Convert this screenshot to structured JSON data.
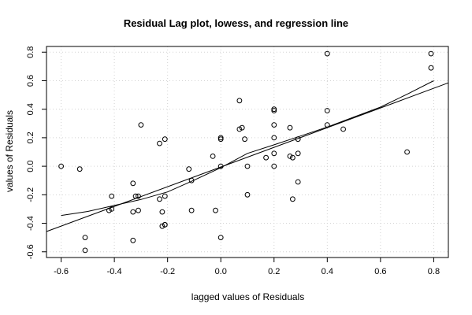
{
  "chart_data": {
    "type": "scatter",
    "title": "Residual Lag plot, lowess, and regression line",
    "xlabel": "lagged values of Residuals",
    "ylabel": "values of Residuals",
    "xlim": [
      -0.655,
      0.855
    ],
    "ylim": [
      -0.64,
      0.84
    ],
    "x_ticks": [
      "-0.6",
      "-0.4",
      "-0.2",
      "0.0",
      "0.2",
      "0.4",
      "0.6",
      "0.8"
    ],
    "y_ticks": [
      "-0.6",
      "-0.4",
      "-0.2",
      "0.0",
      "0.2",
      "0.4",
      "0.6",
      "0.8"
    ],
    "grid": true,
    "points": [
      {
        "x": -0.6,
        "y": 0.0
      },
      {
        "x": -0.53,
        "y": -0.02
      },
      {
        "x": -0.51,
        "y": -0.5
      },
      {
        "x": -0.51,
        "y": -0.59
      },
      {
        "x": -0.42,
        "y": -0.31
      },
      {
        "x": -0.41,
        "y": -0.3
      },
      {
        "x": -0.41,
        "y": -0.21
      },
      {
        "x": -0.33,
        "y": -0.52
      },
      {
        "x": -0.33,
        "y": -0.32
      },
      {
        "x": -0.33,
        "y": -0.12
      },
      {
        "x": -0.32,
        "y": -0.21
      },
      {
        "x": -0.31,
        "y": -0.21
      },
      {
        "x": -0.31,
        "y": -0.31
      },
      {
        "x": -0.3,
        "y": 0.29
      },
      {
        "x": -0.23,
        "y": 0.16
      },
      {
        "x": -0.23,
        "y": -0.23
      },
      {
        "x": -0.22,
        "y": -0.32
      },
      {
        "x": -0.22,
        "y": -0.42
      },
      {
        "x": -0.21,
        "y": -0.41
      },
      {
        "x": -0.21,
        "y": -0.41
      },
      {
        "x": -0.21,
        "y": -0.21
      },
      {
        "x": -0.21,
        "y": 0.19
      },
      {
        "x": -0.12,
        "y": -0.02
      },
      {
        "x": -0.11,
        "y": -0.1
      },
      {
        "x": -0.11,
        "y": -0.31
      },
      {
        "x": -0.03,
        "y": 0.07
      },
      {
        "x": -0.02,
        "y": -0.31
      },
      {
        "x": 0.0,
        "y": 0.19
      },
      {
        "x": 0.0,
        "y": 0.2
      },
      {
        "x": 0.0,
        "y": 0.0
      },
      {
        "x": 0.0,
        "y": -0.5
      },
      {
        "x": 0.07,
        "y": 0.46
      },
      {
        "x": 0.07,
        "y": 0.26
      },
      {
        "x": 0.08,
        "y": 0.27
      },
      {
        "x": 0.09,
        "y": 0.19
      },
      {
        "x": 0.1,
        "y": -0.2
      },
      {
        "x": 0.1,
        "y": 0.0
      },
      {
        "x": 0.17,
        "y": 0.06
      },
      {
        "x": 0.2,
        "y": 0.4
      },
      {
        "x": 0.2,
        "y": 0.39
      },
      {
        "x": 0.2,
        "y": 0.29
      },
      {
        "x": 0.2,
        "y": 0.2
      },
      {
        "x": 0.2,
        "y": 0.09
      },
      {
        "x": 0.2,
        "y": 0.0
      },
      {
        "x": 0.26,
        "y": 0.27
      },
      {
        "x": 0.26,
        "y": 0.07
      },
      {
        "x": 0.27,
        "y": 0.06
      },
      {
        "x": 0.27,
        "y": -0.23
      },
      {
        "x": 0.29,
        "y": 0.19
      },
      {
        "x": 0.29,
        "y": 0.09
      },
      {
        "x": 0.29,
        "y": -0.11
      },
      {
        "x": 0.4,
        "y": 0.79
      },
      {
        "x": 0.4,
        "y": 0.39
      },
      {
        "x": 0.4,
        "y": 0.29
      },
      {
        "x": 0.46,
        "y": 0.26
      },
      {
        "x": 0.7,
        "y": 0.1
      },
      {
        "x": 0.79,
        "y": 0.79
      },
      {
        "x": 0.79,
        "y": 0.69
      }
    ],
    "series": [
      {
        "type": "line",
        "x": [
          -0.6,
          -0.5,
          -0.4,
          -0.3,
          -0.2,
          -0.1,
          0.0,
          0.1,
          0.2,
          0.3,
          0.4,
          0.5,
          0.6,
          0.7,
          0.8
        ],
        "y": [
          -0.345,
          -0.317,
          -0.275,
          -0.233,
          -0.18,
          -0.097,
          -0.01,
          0.09,
          0.15,
          0.212,
          0.275,
          0.345,
          0.415,
          0.505,
          0.6
        ]
      },
      {
        "type": "line",
        "x": [
          -0.655,
          0.855
        ],
        "y": [
          -0.458,
          0.585
        ]
      }
    ]
  }
}
